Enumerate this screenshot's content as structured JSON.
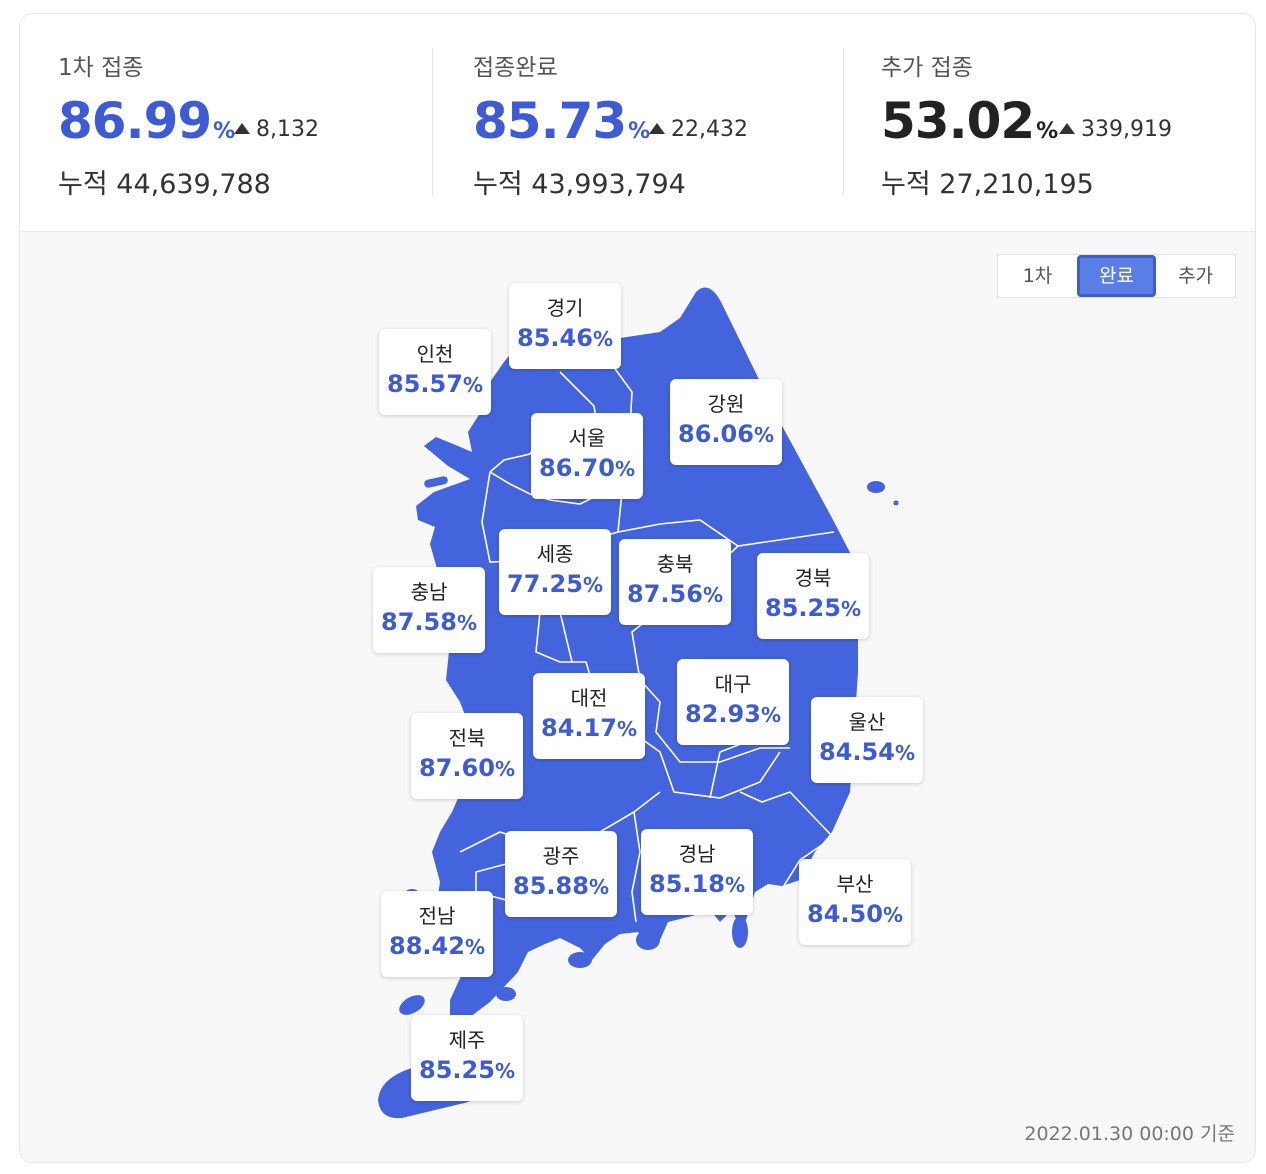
{
  "stats": [
    {
      "label": "1차 접종",
      "percent": "86.99",
      "unit": "%",
      "delta": "8,132",
      "cumulative": "누적 44,639,788",
      "color": "#3d5bd6"
    },
    {
      "label": "접종완료",
      "percent": "85.73",
      "unit": "%",
      "delta": "22,432",
      "cumulative": "누적 43,993,794",
      "color": "#3d5bd6"
    },
    {
      "label": "추가 접종",
      "percent": "53.02",
      "unit": "%",
      "delta": "339,919",
      "cumulative": "누적 27,210,195",
      "color": "#222222"
    }
  ],
  "toggle": {
    "items": [
      "1차",
      "완료",
      "추가"
    ],
    "selected": "완료"
  },
  "map": {
    "fill_color": "#4364dc",
    "border_color": "#ffffff",
    "regions": [
      {
        "name": "경기",
        "value": "85.46",
        "unit": "%"
      },
      {
        "name": "인천",
        "value": "85.57",
        "unit": "%"
      },
      {
        "name": "강원",
        "value": "86.06",
        "unit": "%"
      },
      {
        "name": "서울",
        "value": "86.70",
        "unit": "%"
      },
      {
        "name": "세종",
        "value": "77.25",
        "unit": "%"
      },
      {
        "name": "충북",
        "value": "87.56",
        "unit": "%"
      },
      {
        "name": "경북",
        "value": "85.25",
        "unit": "%"
      },
      {
        "name": "충남",
        "value": "87.58",
        "unit": "%"
      },
      {
        "name": "대전",
        "value": "84.17",
        "unit": "%"
      },
      {
        "name": "대구",
        "value": "82.93",
        "unit": "%"
      },
      {
        "name": "전북",
        "value": "87.60",
        "unit": "%"
      },
      {
        "name": "울산",
        "value": "84.54",
        "unit": "%"
      },
      {
        "name": "광주",
        "value": "85.88",
        "unit": "%"
      },
      {
        "name": "경남",
        "value": "85.18",
        "unit": "%"
      },
      {
        "name": "부산",
        "value": "84.50",
        "unit": "%"
      },
      {
        "name": "전남",
        "value": "88.42",
        "unit": "%"
      },
      {
        "name": "제주",
        "value": "85.25",
        "unit": "%"
      }
    ]
  },
  "basis": "2022.01.30 00:00 기준"
}
